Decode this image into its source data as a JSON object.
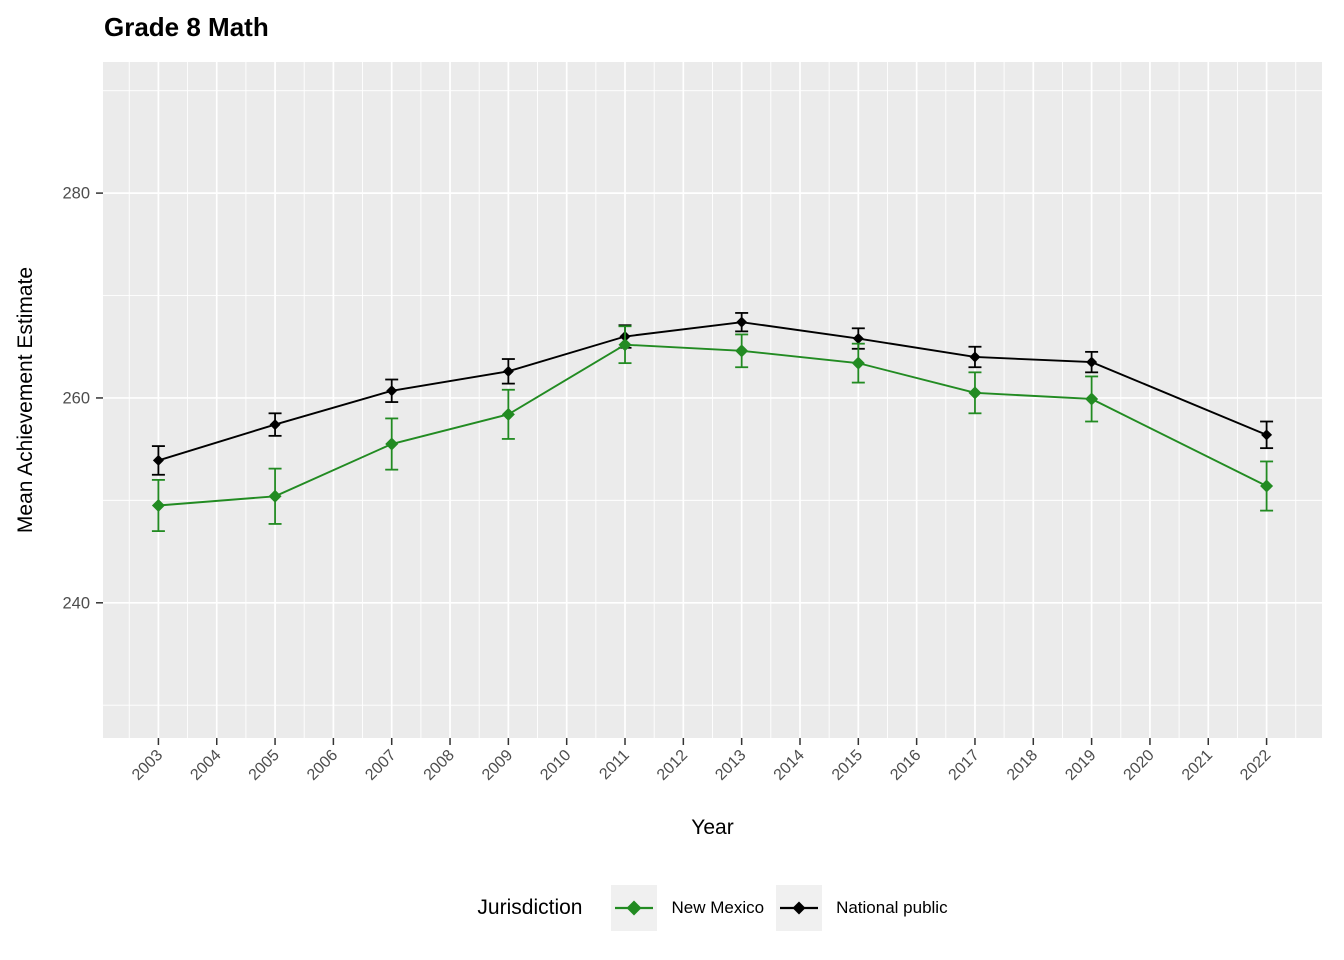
{
  "page": {
    "background": "#FFFFFF"
  },
  "chart_data": {
    "type": "line",
    "title": "Grade 8 Math",
    "xlabel": "Year",
    "ylabel": "Mean Achievement Estimate",
    "legend_title": "Jurisdiction",
    "legend_position": "bottom",
    "panel_background": "#EBEBEB",
    "grid_color": "#FFFFFF",
    "tick_color": "#333333",
    "tick_label_color": "#4D4D4D",
    "x_tick_years": [
      2003,
      2004,
      2005,
      2006,
      2007,
      2008,
      2009,
      2010,
      2011,
      2012,
      2013,
      2014,
      2015,
      2016,
      2017,
      2018,
      2019,
      2020,
      2021,
      2022
    ],
    "y_ticks": [
      240,
      260,
      280
    ],
    "y_minor_ticks": [
      230,
      250,
      270,
      290
    ],
    "xlim": [
      2002.05,
      2022.95
    ],
    "ylim": [
      226.8,
      292.8
    ],
    "x": [
      2003,
      2005,
      2007,
      2009,
      2011,
      2013,
      2015,
      2017,
      2019,
      2022
    ],
    "series": [
      {
        "name": "New Mexico",
        "color": "#228B22",
        "point_size": 6.5,
        "values": [
          249.5,
          250.4,
          255.5,
          258.4,
          265.2,
          264.6,
          263.4,
          260.5,
          259.9,
          251.4
        ],
        "error": [
          2.5,
          2.7,
          2.5,
          2.4,
          1.8,
          1.6,
          1.9,
          2.0,
          2.2,
          2.4
        ]
      },
      {
        "name": "National public",
        "color": "#000000",
        "point_size": 5.5,
        "values": [
          253.9,
          257.4,
          260.7,
          262.6,
          266.0,
          267.4,
          265.8,
          264.0,
          263.5,
          256.4
        ],
        "error": [
          1.4,
          1.1,
          1.1,
          1.2,
          1.1,
          0.9,
          1.0,
          1.0,
          1.0,
          1.3
        ]
      }
    ]
  }
}
